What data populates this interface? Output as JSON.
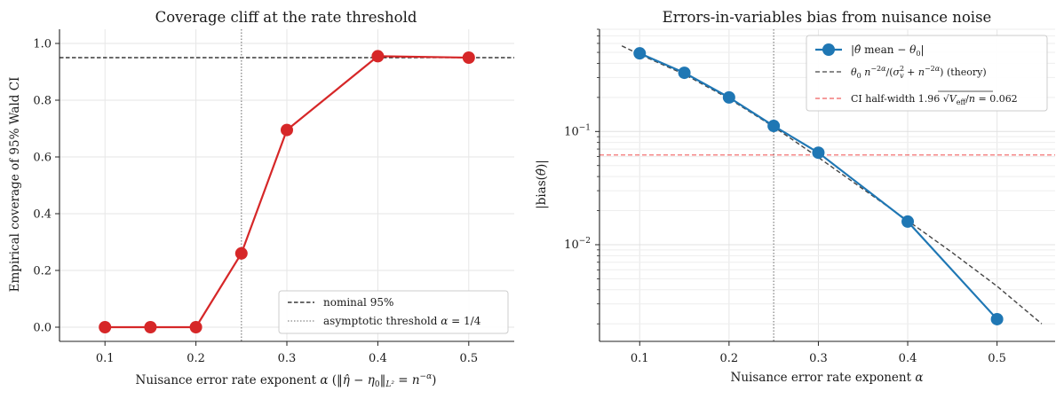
{
  "colors": {
    "coverage": "#d62728",
    "bias": "#1f77b4",
    "theory": "#444444",
    "halfwidth": "#f06060",
    "nominal": "#111111",
    "threshold": "#888888"
  },
  "chart_data": [
    {
      "type": "line",
      "title": "Coverage cliff at the rate threshold",
      "xlabel": "Nuisance error rate exponent  α  (‖η̂ − η₀‖L² = n⁻ᵅ)",
      "ylabel": "Empirical coverage of 95% Wald CI",
      "xlim": [
        0.05,
        0.55
      ],
      "ylim": [
        -0.05,
        1.05
      ],
      "xticks": [
        0.1,
        0.2,
        0.3,
        0.4,
        0.5
      ],
      "xtick_labels": [
        "0.1",
        "0.2",
        "0.3",
        "0.4",
        "0.5"
      ],
      "yticks": [
        0.0,
        0.2,
        0.4,
        0.6,
        0.8,
        1.0
      ],
      "ytick_labels": [
        "0.0",
        "0.2",
        "0.4",
        "0.6",
        "0.8",
        "1.0"
      ],
      "grid": true,
      "legend_position": "lower-right",
      "series": [
        {
          "x": [
            0.1,
            0.15,
            0.2,
            0.25,
            0.3,
            0.4,
            0.5
          ],
          "y": [
            0.0,
            0.0,
            0.0,
            0.26,
            0.695,
            0.955,
            0.95
          ]
        }
      ],
      "reference_lines": [
        {
          "orientation": "horizontal",
          "value": 0.95,
          "style": "dashed",
          "label": "nominal 95%"
        },
        {
          "orientation": "vertical",
          "value": 0.25,
          "style": "dotted",
          "label": "asymptotic threshold α = 1/4"
        }
      ]
    },
    {
      "type": "line",
      "title": "Errors-in-variables bias from nuisance noise",
      "xlabel": "Nuisance error rate exponent  α",
      "ylabel": "|bias(θ̂)|",
      "xlim": [
        0.055,
        0.565
      ],
      "ylim": [
        0.0014,
        0.8
      ],
      "yscale": "log",
      "xticks": [
        0.1,
        0.2,
        0.3,
        0.4,
        0.5
      ],
      "xtick_labels": [
        "0.1",
        "0.2",
        "0.3",
        "0.4",
        "0.5"
      ],
      "yticks": [
        0.01,
        0.1
      ],
      "grid": true,
      "legend_position": "upper-right",
      "series": [
        {
          "name": "|θ̂ mean − θ₀|",
          "x": [
            0.1,
            0.15,
            0.2,
            0.25,
            0.3,
            0.4,
            0.5
          ],
          "y": [
            0.49,
            0.33,
            0.2,
            0.112,
            0.065,
            0.016,
            0.0022
          ]
        },
        {
          "name": "θ₀ n⁻²ᵅ/(σᵥ² + n⁻²ᵅ)  (theory)",
          "x": [
            0.08,
            0.1,
            0.15,
            0.2,
            0.25,
            0.3,
            0.35,
            0.4,
            0.45,
            0.5,
            0.55
          ],
          "y": [
            0.57,
            0.48,
            0.32,
            0.195,
            0.11,
            0.059,
            0.031,
            0.0163,
            0.0085,
            0.0043,
            0.002
          ]
        }
      ],
      "reference_lines": [
        {
          "orientation": "horizontal",
          "value": 0.062,
          "style": "dashed",
          "label": "CI half-width  1.96 √(V_eff/n) = 0.062"
        },
        {
          "orientation": "vertical",
          "value": 0.25,
          "style": "dotted"
        }
      ]
    }
  ]
}
